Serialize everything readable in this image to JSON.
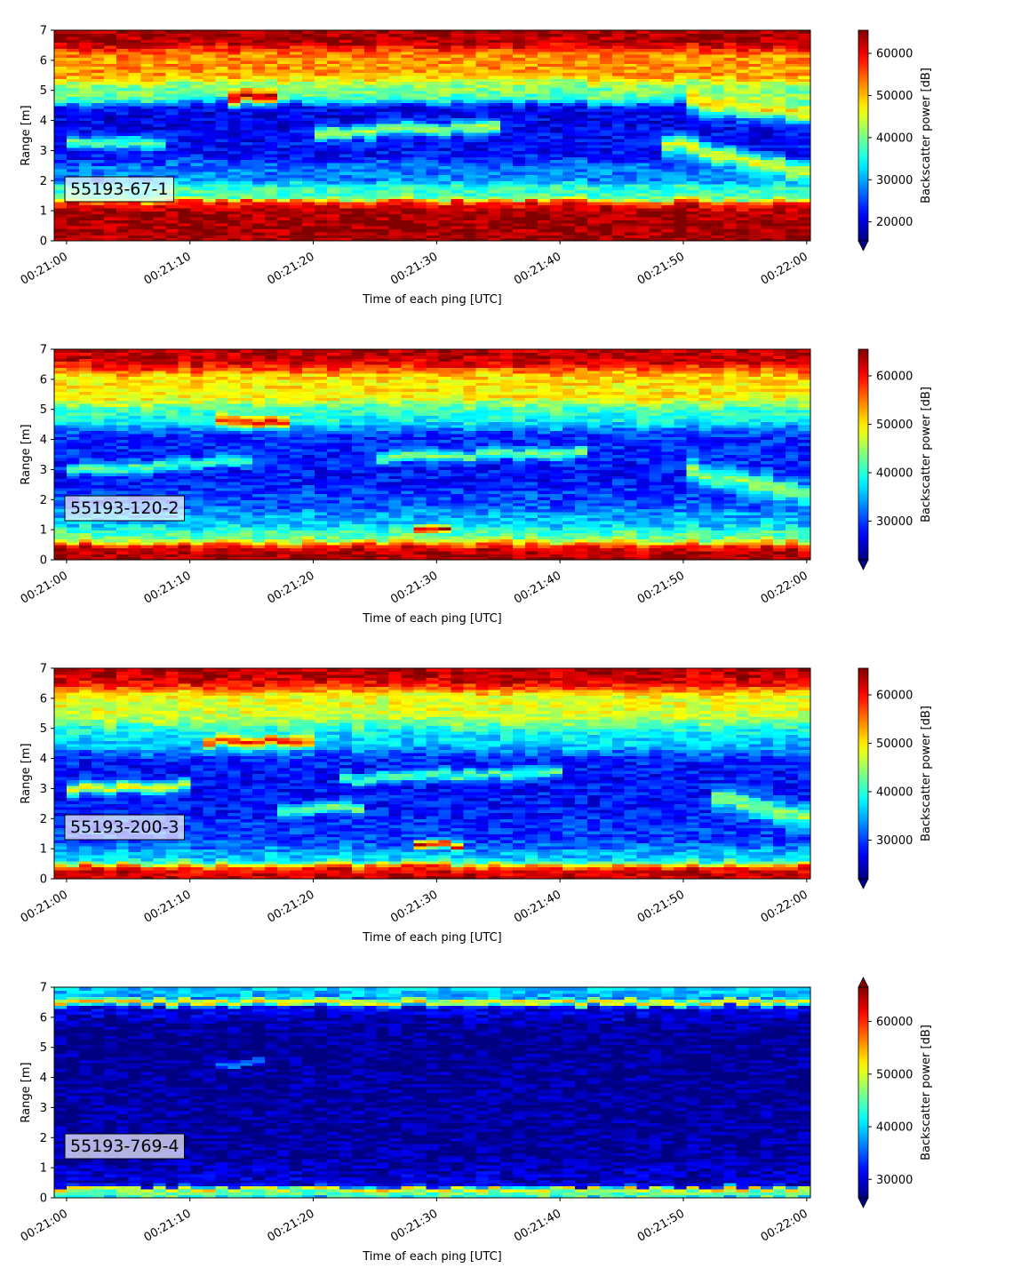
{
  "colors": {
    "colormap": "jet",
    "axis": "#000000",
    "label_box_alpha": 0.7
  },
  "chart_data": [
    {
      "type": "heatmap",
      "label": "55193-67-1",
      "xlabel": "Time of each ping [UTC]",
      "ylabel": "Range [m]",
      "colorbar_label": "Backscatter power [dB]",
      "x_ticks": [
        "00:21:00",
        "00:21:10",
        "00:21:20",
        "00:21:30",
        "00:21:40",
        "00:21:50",
        "00:22:00"
      ],
      "y_ticks": [
        0,
        1,
        2,
        3,
        4,
        5,
        6,
        7
      ],
      "xlim_seconds": [
        -1,
        60.3
      ],
      "ylim": [
        0,
        7
      ],
      "colorbar_ticks": [
        20000,
        30000,
        40000,
        50000,
        60000
      ],
      "clim": [
        15500,
        65500
      ],
      "extend": "min",
      "bands": [
        {
          "center": 0.6,
          "width": 0.85,
          "value": 64000
        },
        {
          "center": 1.2,
          "width": 0.2,
          "value": 60000
        },
        {
          "center": 1.6,
          "width": 0.4,
          "value": 37000
        },
        {
          "center": 2.3,
          "width": 0.5,
          "value": 28000
        },
        {
          "center": 3.2,
          "width": 0.8,
          "value": 22000
        },
        {
          "center": 4.0,
          "width": 0.8,
          "value": 21000
        },
        {
          "center": 5.0,
          "width": 0.5,
          "value": 40000
        },
        {
          "center": 5.9,
          "width": 0.8,
          "value": 52000
        },
        {
          "center": 6.75,
          "width": 0.55,
          "value": 64000
        }
      ],
      "trails": [
        {
          "t0": 13,
          "r0": 4.8,
          "t1": 17,
          "r1": 4.8,
          "value": 62000,
          "width": 0.35
        },
        {
          "t0": 20,
          "r0": 3.6,
          "t1": 35,
          "r1": 3.8,
          "value": 43000,
          "width": 0.35
        },
        {
          "t0": 48,
          "r0": 3.3,
          "t1": 60,
          "r1": 2.3,
          "value": 45000,
          "width": 0.5
        },
        {
          "t0": 50,
          "r0": 4.7,
          "t1": 60,
          "r1": 4.3,
          "value": 48000,
          "width": 0.6
        },
        {
          "t0": 0,
          "r0": 3.3,
          "t1": 8,
          "r1": 3.3,
          "value": 38000,
          "width": 0.35
        }
      ]
    },
    {
      "type": "heatmap",
      "label": "55193-120-2",
      "xlabel": "Time of each ping [UTC]",
      "ylabel": "Range [m]",
      "colorbar_label": "Backscatter power [dB]",
      "x_ticks": [
        "00:21:00",
        "00:21:10",
        "00:21:20",
        "00:21:30",
        "00:21:40",
        "00:21:50",
        "00:22:00"
      ],
      "y_ticks": [
        0,
        1,
        2,
        3,
        4,
        5,
        6,
        7
      ],
      "xlim_seconds": [
        -1,
        60.3
      ],
      "ylim": [
        0,
        7
      ],
      "colorbar_ticks": [
        30000,
        40000,
        50000,
        60000
      ],
      "clim": [
        22000,
        65500
      ],
      "extend": "min",
      "bands": [
        {
          "center": 0.35,
          "width": 0.4,
          "value": 64000
        },
        {
          "center": 0.8,
          "width": 0.5,
          "value": 42000
        },
        {
          "center": 1.35,
          "width": 0.5,
          "value": 35000
        },
        {
          "center": 2.0,
          "width": 0.6,
          "value": 31000
        },
        {
          "center": 2.8,
          "width": 1.0,
          "value": 28000
        },
        {
          "center": 3.8,
          "width": 1.0,
          "value": 29000
        },
        {
          "center": 4.8,
          "width": 0.6,
          "value": 40000
        },
        {
          "center": 5.8,
          "width": 0.9,
          "value": 50000
        },
        {
          "center": 6.7,
          "width": 0.6,
          "value": 63000
        }
      ],
      "trails": [
        {
          "t0": 12,
          "r0": 4.6,
          "t1": 18,
          "r1": 4.6,
          "value": 60000,
          "width": 0.3
        },
        {
          "t0": 0,
          "r0": 3.0,
          "t1": 15,
          "r1": 3.3,
          "value": 42000,
          "width": 0.3
        },
        {
          "t0": 25,
          "r0": 3.4,
          "t1": 42,
          "r1": 3.6,
          "value": 43000,
          "width": 0.3
        },
        {
          "t0": 28,
          "r0": 1.0,
          "t1": 31,
          "r1": 1.05,
          "value": 62000,
          "width": 0.2
        },
        {
          "t0": 50,
          "r0": 3.0,
          "t1": 60,
          "r1": 2.2,
          "value": 44000,
          "width": 0.6
        }
      ]
    },
    {
      "type": "heatmap",
      "label": "55193-200-3",
      "xlabel": "Time of each ping [UTC]",
      "ylabel": "Range [m]",
      "colorbar_label": "Backscatter power [dB]",
      "x_ticks": [
        "00:21:00",
        "00:21:10",
        "00:21:20",
        "00:21:30",
        "00:21:40",
        "00:21:50",
        "00:22:00"
      ],
      "y_ticks": [
        0,
        1,
        2,
        3,
        4,
        5,
        6,
        7
      ],
      "xlim_seconds": [
        -1,
        60.3
      ],
      "ylim": [
        0,
        7
      ],
      "colorbar_ticks": [
        30000,
        40000,
        50000,
        60000
      ],
      "clim": [
        22000,
        65500
      ],
      "extend": "min",
      "bands": [
        {
          "center": 0.3,
          "width": 0.35,
          "value": 63000
        },
        {
          "center": 0.75,
          "width": 0.5,
          "value": 37000
        },
        {
          "center": 1.5,
          "width": 0.9,
          "value": 30000
        },
        {
          "center": 2.5,
          "width": 1.0,
          "value": 28000
        },
        {
          "center": 3.6,
          "width": 1.1,
          "value": 28000
        },
        {
          "center": 4.7,
          "width": 0.8,
          "value": 37000
        },
        {
          "center": 5.7,
          "width": 1.0,
          "value": 48000
        },
        {
          "center": 6.7,
          "width": 0.6,
          "value": 63000
        }
      ],
      "trails": [
        {
          "t0": 11,
          "r0": 4.6,
          "t1": 20,
          "r1": 4.6,
          "value": 58000,
          "width": 0.3
        },
        {
          "t0": 0,
          "r0": 3.0,
          "t1": 10,
          "r1": 3.1,
          "value": 48000,
          "width": 0.3
        },
        {
          "t0": 17,
          "r0": 2.3,
          "t1": 24,
          "r1": 2.4,
          "value": 44000,
          "width": 0.3
        },
        {
          "t0": 28,
          "r0": 1.1,
          "t1": 32,
          "r1": 1.15,
          "value": 62000,
          "width": 0.2
        },
        {
          "t0": 22,
          "r0": 3.3,
          "t1": 40,
          "r1": 3.6,
          "value": 42000,
          "width": 0.3
        },
        {
          "t0": 52,
          "r0": 2.8,
          "t1": 60,
          "r1": 2.0,
          "value": 44000,
          "width": 0.6
        }
      ]
    },
    {
      "type": "heatmap",
      "label": "55193-769-4",
      "xlabel": "Time of each ping [UTC]",
      "ylabel": "Range [m]",
      "colorbar_label": "Backscatter power [dB]",
      "x_ticks": [
        "00:21:00",
        "00:21:10",
        "00:21:20",
        "00:21:30",
        "00:21:40",
        "00:21:50",
        "00:22:00"
      ],
      "y_ticks": [
        0,
        1,
        2,
        3,
        4,
        5,
        6,
        7
      ],
      "xlim_seconds": [
        -1,
        60.3
      ],
      "ylim": [
        0,
        7
      ],
      "colorbar_ticks": [
        30000,
        40000,
        50000,
        60000
      ],
      "clim": [
        26500,
        66500
      ],
      "extend": "both",
      "bands": [
        {
          "center": 0.15,
          "width": 0.2,
          "value": 50000
        },
        {
          "center": 0.3,
          "width": 0.1,
          "value": 64000
        },
        {
          "center": 0.7,
          "width": 0.6,
          "value": 30000
        },
        {
          "center": 2.5,
          "width": 3.0,
          "value": 27500
        },
        {
          "center": 5.0,
          "width": 1.8,
          "value": 27000
        },
        {
          "center": 6.2,
          "width": 0.5,
          "value": 31000
        },
        {
          "center": 6.5,
          "width": 0.15,
          "value": 64000
        },
        {
          "center": 6.85,
          "width": 0.3,
          "value": 40000
        }
      ],
      "trails": [
        {
          "t0": 12,
          "r0": 4.45,
          "t1": 16,
          "r1": 4.5,
          "value": 36000,
          "width": 0.2
        }
      ]
    }
  ]
}
